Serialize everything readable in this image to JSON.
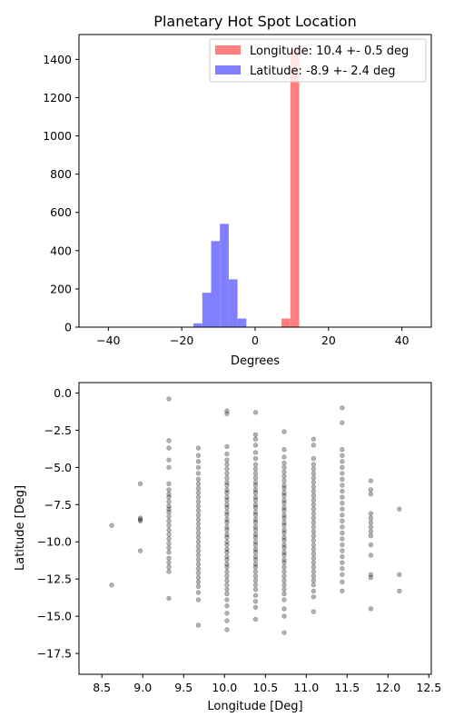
{
  "chart_data": [
    {
      "type": "histogram",
      "title": "Planetary Hot Spot Location",
      "xlabel": "Degrees",
      "ylabel": "",
      "xlim": [
        -48,
        48
      ],
      "ylim": [
        0,
        1530
      ],
      "xticks": [
        -40,
        -20,
        0,
        20,
        40
      ],
      "yticks": [
        0,
        200,
        400,
        600,
        800,
        1000,
        1200,
        1400
      ],
      "bin_width": 2.4,
      "legend_position": "top-right",
      "series": [
        {
          "name": "Longitude: 10.4 +- 0.5 deg",
          "color": "#ff7f7f",
          "bins": [
            {
              "start": 7.2,
              "count": 45
            },
            {
              "start": 9.6,
              "count": 1455
            }
          ]
        },
        {
          "name": "Latitude: -8.9 +- 2.4 deg",
          "color": "#7f7fff",
          "bins": [
            {
              "start": -16.8,
              "count": 20
            },
            {
              "start": -14.4,
              "count": 180
            },
            {
              "start": -12.0,
              "count": 450
            },
            {
              "start": -9.6,
              "count": 540
            },
            {
              "start": -7.2,
              "count": 250
            },
            {
              "start": -4.8,
              "count": 45
            }
          ]
        }
      ]
    },
    {
      "type": "scatter",
      "title": "",
      "xlabel": "Longitude [Deg]",
      "ylabel": "Latitude [Deg]",
      "xlim": [
        8.22,
        12.53
      ],
      "ylim": [
        -18.9,
        0.7
      ],
      "xticks": [
        8.5,
        9.0,
        9.5,
        10.0,
        10.5,
        11.0,
        11.5,
        12.0,
        12.5
      ],
      "yticks": [
        0.0,
        -2.5,
        -5.0,
        -7.5,
        -10.0,
        -12.5,
        -15.0,
        -17.5
      ],
      "point_color": "#000000",
      "point_alpha": 0.3,
      "columns": [
        {
          "x": 8.62,
          "ys": [
            -8.9,
            -12.9
          ]
        },
        {
          "x": 8.97,
          "ys": [
            -6.1,
            -8.4,
            -8.5,
            -8.6,
            -10.6
          ]
        },
        {
          "x": 9.32,
          "ys": [
            -0.4,
            -3.2,
            -3.7,
            -4.5,
            -5.0,
            -6.1,
            -6.5,
            -6.8,
            -7.0,
            -7.3,
            -7.6,
            -7.8,
            -8.0,
            -8.3,
            -8.6,
            -8.9,
            -9.2,
            -9.5,
            -9.8,
            -10.1,
            -10.4,
            -10.7,
            -11.1,
            -11.4,
            -11.7,
            -12.0,
            -13.8
          ]
        },
        {
          "x": 9.68,
          "ys": [
            -3.7,
            -4.2,
            -4.6,
            -5.0,
            -5.4,
            -5.8,
            -6.1,
            -6.4,
            -6.7,
            -7.0,
            -7.3,
            -7.6,
            -7.9,
            -8.2,
            -8.5,
            -8.8,
            -9.1,
            -9.4,
            -9.7,
            -10.0,
            -10.3,
            -10.6,
            -10.9,
            -11.2,
            -11.5,
            -11.8,
            -12.1,
            -12.4,
            -12.7,
            -13.0,
            -13.4,
            -13.9,
            -15.6
          ]
        },
        {
          "x": 10.03,
          "ys": [
            -1.2,
            -1.4,
            -3.6,
            -4.1,
            -4.5,
            -4.8,
            -5.1,
            -5.4,
            -5.7,
            -6.0,
            -6.2,
            -6.5,
            -6.7,
            -7.0,
            -7.2,
            -7.5,
            -7.7,
            -8.0,
            -8.2,
            -8.5,
            -8.7,
            -9.0,
            -9.2,
            -9.5,
            -9.7,
            -10.0,
            -10.2,
            -10.5,
            -10.7,
            -11.0,
            -11.2,
            -11.5,
            -11.7,
            -12.0,
            -12.3,
            -12.6,
            -12.9,
            -13.2,
            -13.5,
            -13.9,
            -14.3,
            -14.8,
            -15.3,
            -15.9
          ]
        },
        {
          "x": 10.38,
          "ys": [
            -1.3,
            -2.8,
            -3.1,
            -3.5,
            -4.0,
            -4.4,
            -4.8,
            -5.1,
            -5.4,
            -5.7,
            -6.0,
            -6.2,
            -6.5,
            -6.7,
            -7.0,
            -7.2,
            -7.5,
            -7.7,
            -8.0,
            -8.2,
            -8.5,
            -8.7,
            -9.0,
            -9.2,
            -9.5,
            -9.7,
            -10.0,
            -10.2,
            -10.5,
            -10.7,
            -11.0,
            -11.2,
            -11.5,
            -11.7,
            -12.0,
            -12.3,
            -12.6,
            -12.9,
            -13.2,
            -13.6,
            -14.0,
            -14.4,
            -15.2
          ]
        },
        {
          "x": 10.73,
          "ys": [
            -2.6,
            -3.8,
            -4.3,
            -4.7,
            -5.0,
            -5.3,
            -5.6,
            -5.9,
            -6.2,
            -6.4,
            -6.7,
            -6.9,
            -7.2,
            -7.4,
            -7.7,
            -7.9,
            -8.2,
            -8.4,
            -8.7,
            -8.9,
            -9.2,
            -9.4,
            -9.7,
            -9.9,
            -10.2,
            -10.4,
            -10.7,
            -10.9,
            -11.2,
            -11.4,
            -11.7,
            -12.0,
            -12.3,
            -12.6,
            -12.9,
            -13.2,
            -13.5,
            -13.9,
            -14.5,
            -15.0,
            -16.1
          ]
        },
        {
          "x": 11.09,
          "ys": [
            -3.1,
            -3.5,
            -4.4,
            -4.8,
            -5.1,
            -5.4,
            -5.7,
            -6.0,
            -6.3,
            -6.6,
            -6.9,
            -7.2,
            -7.5,
            -7.8,
            -8.1,
            -8.4,
            -8.7,
            -9.0,
            -9.3,
            -9.6,
            -9.9,
            -10.2,
            -10.5,
            -10.8,
            -11.1,
            -11.4,
            -11.7,
            -12.0,
            -12.3,
            -12.6,
            -12.9,
            -13.3,
            -13.7,
            -14.7
          ]
        },
        {
          "x": 11.44,
          "ys": [
            -1.0,
            -2.0,
            -3.8,
            -4.2,
            -4.6,
            -5.0,
            -5.4,
            -5.8,
            -6.2,
            -6.6,
            -7.0,
            -7.4,
            -7.8,
            -8.2,
            -8.6,
            -9.0,
            -9.4,
            -9.8,
            -10.2,
            -10.6,
            -11.0,
            -11.4,
            -11.8,
            -12.2,
            -12.7,
            -13.3
          ]
        },
        {
          "x": 11.79,
          "ys": [
            -5.9,
            -6.5,
            -6.8,
            -8.1,
            -8.4,
            -8.7,
            -9.0,
            -9.3,
            -9.6,
            -10.2,
            -10.9,
            -12.2,
            -12.4,
            -14.5
          ]
        },
        {
          "x": 12.14,
          "ys": [
            -7.8,
            -12.2,
            -13.3
          ]
        }
      ]
    }
  ]
}
